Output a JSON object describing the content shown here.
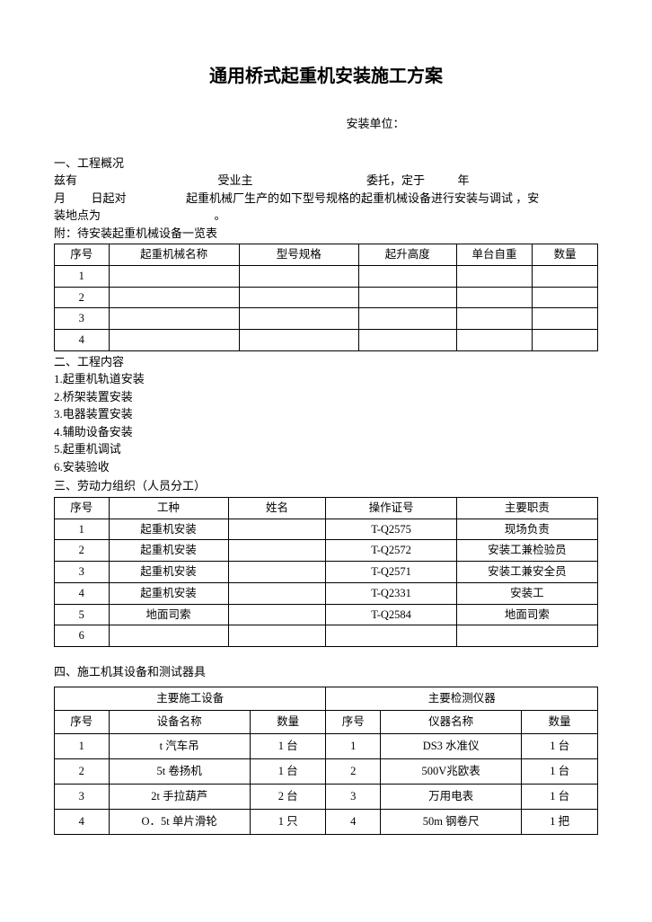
{
  "title": "通用桥式起重机安装施工方案",
  "subtitle": "安装单位：",
  "section1": {
    "heading": "一、工程概况",
    "line1_a": "兹有",
    "line1_b": "受业主",
    "line1_c": "委托，定于",
    "line1_d": "年",
    "line2_a": "月",
    "line2_b": "日起对",
    "line2_c": "起重机械厂生产的如下型号规格的起重机械设备进行安装与调试 ，安",
    "line3_a": "装地点为",
    "line3_b": "。",
    "attach": "附：待安装起重机械设备一览表"
  },
  "table1": {
    "headers": [
      "序号",
      "起重机械名称",
      "型号规格",
      "起升高度",
      "单台自重",
      "数量"
    ],
    "col_widths": [
      "10%",
      "24%",
      "22%",
      "18%",
      "14%",
      "12%"
    ],
    "rows": [
      [
        "1",
        "",
        "",
        "",
        "",
        ""
      ],
      [
        "2",
        "",
        "",
        "",
        "",
        ""
      ],
      [
        "3",
        "",
        "",
        "",
        "",
        ""
      ],
      [
        "4",
        "",
        "",
        "",
        "",
        ""
      ]
    ]
  },
  "section2": {
    "heading": "二、工程内容",
    "items": [
      "1.起重机轨道安装",
      "2.桥架装置安装",
      "3.电器装置安装",
      "4.辅助设备安装",
      "5.起重机调试",
      "6.安装验收"
    ]
  },
  "section3": {
    "heading": "三、劳动力组织（人员分工）"
  },
  "table3": {
    "headers": [
      "序号",
      "工种",
      "姓名",
      "操作证号",
      "主要职责"
    ],
    "col_widths": [
      "10%",
      "22%",
      "18%",
      "24%",
      "26%"
    ],
    "rows": [
      [
        "1",
        "起重机安装",
        "",
        "T-Q2575",
        "现场负责"
      ],
      [
        "2",
        "起重机安装",
        "",
        "T-Q2572",
        "安装工兼检验员"
      ],
      [
        "3",
        "起重机安装",
        "",
        "T-Q2571",
        "安装工兼安全员"
      ],
      [
        "4",
        "起重机安装",
        "",
        "T-Q2331",
        "安装工"
      ],
      [
        "5",
        "地面司索",
        "",
        "T-Q2584",
        "地面司索"
      ],
      [
        "6",
        "",
        "",
        "",
        ""
      ]
    ]
  },
  "section4": {
    "heading": "四、施工机其设备和测试器具"
  },
  "table4": {
    "group_headers": [
      "主要施工设备",
      "主要检测仪器"
    ],
    "headers": [
      "序号",
      "设备名称",
      "数量",
      "序号",
      "仪器名称",
      "数量"
    ],
    "col_widths": [
      "10%",
      "26%",
      "14%",
      "10%",
      "26%",
      "14%"
    ],
    "rows": [
      [
        "1",
        "t 汽车吊",
        "1 台",
        "1",
        "DS3 水准仪",
        "1 台"
      ],
      [
        "2",
        "5t 卷扬机",
        "1 台",
        "2",
        "500V兆欧表",
        "1 台"
      ],
      [
        "3",
        "2t 手拉葫芦",
        "2 台",
        "3",
        "万用电表",
        "1 台"
      ],
      [
        "4",
        "O．5t 单片滑轮",
        "1 只",
        "4",
        "50m 钢卷尺",
        "1 把"
      ]
    ]
  }
}
